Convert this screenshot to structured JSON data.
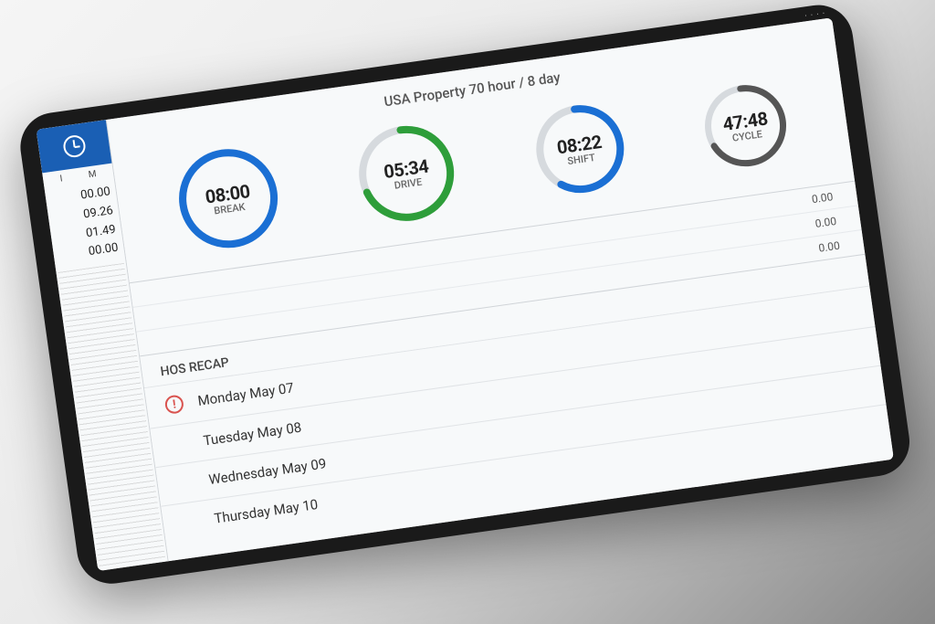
{
  "header": {
    "title": "USA Property 70 hour / 8 day"
  },
  "sidebar": {
    "columns": [
      "I",
      "M"
    ],
    "values": [
      "00.00",
      "09.26",
      "01.49",
      "00.00"
    ]
  },
  "gauges": [
    {
      "time": "08:00",
      "label": "BREAK",
      "color": "#1a6fd4",
      "progress": 1.0,
      "size": 116,
      "stroke": 8
    },
    {
      "time": "05:34",
      "label": "DRIVE",
      "color": "#2e9e3a",
      "progress": 0.7,
      "size": 112,
      "stroke": 8
    },
    {
      "time": "08:22",
      "label": "SHIFT",
      "color": "#1a6fd4",
      "progress": 0.6,
      "size": 104,
      "stroke": 8
    },
    {
      "time": "47:48",
      "label": "CYCLE",
      "color": "#555555",
      "progress": 0.68,
      "size": 96,
      "stroke": 7
    }
  ],
  "gauge_track_color": "#d6dade",
  "summary": [
    "0.00",
    "0.00",
    "0.00"
  ],
  "recap": {
    "title": "HOS RECAP",
    "rows": [
      {
        "label": "Monday May 07",
        "alert": true
      },
      {
        "label": "Tuesday May 08",
        "alert": false
      },
      {
        "label": "Wednesday May 09",
        "alert": false
      },
      {
        "label": "Thursday May 10",
        "alert": false
      }
    ]
  },
  "colors": {
    "accent": "#1a5fb4",
    "background": "#f7f9fa",
    "divider": "#d0d4d8",
    "text": "#222222",
    "muted": "#666666",
    "alert": "#d9534f"
  }
}
